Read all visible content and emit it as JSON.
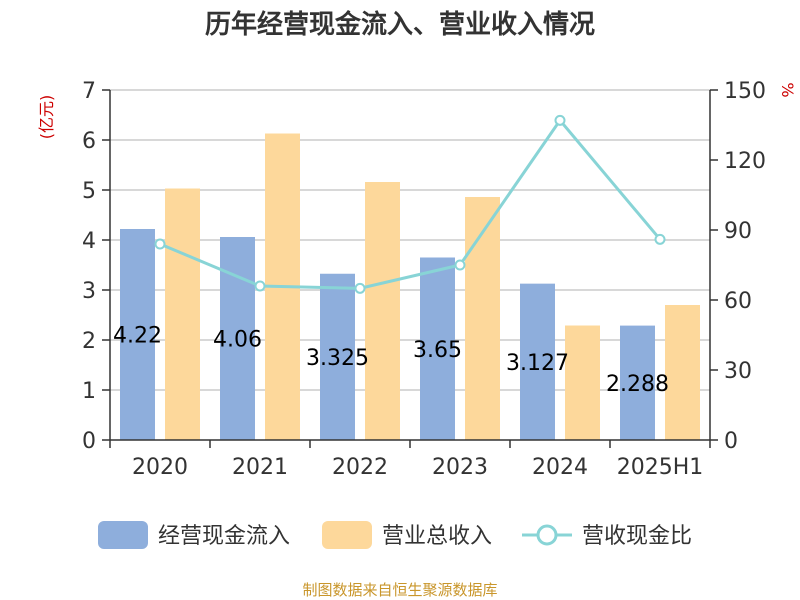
{
  "chart_data": {
    "type": "bar",
    "title": "历年经营现金流入、营业收入情况",
    "categories": [
      "2020",
      "2021",
      "2022",
      "2023",
      "2024",
      "2025H1"
    ],
    "y_left": {
      "unit": "(亿元)",
      "ticks": [
        "0",
        "1",
        "2",
        "3",
        "4",
        "5",
        "6",
        "7"
      ],
      "range": [
        0,
        7
      ]
    },
    "y_right": {
      "unit": "%",
      "ticks": [
        "0",
        "30",
        "60",
        "90",
        "120",
        "150"
      ],
      "range": [
        0,
        150
      ]
    },
    "series": [
      {
        "name": "经营现金流入",
        "type": "bar",
        "axis": "left",
        "color": "#8eaedc",
        "values": [
          4.22,
          4.06,
          3.325,
          3.65,
          3.127,
          2.288
        ],
        "labels": [
          "4.22",
          "4.06",
          "3.325",
          "3.65",
          "3.127",
          "2.288"
        ]
      },
      {
        "name": "营业总收入",
        "type": "bar",
        "axis": "left",
        "color": "#fdd89b",
        "values": [
          5.03,
          6.13,
          5.16,
          4.86,
          2.29,
          2.7
        ]
      },
      {
        "name": "营收现金比",
        "type": "line",
        "axis": "right",
        "color": "#88d4d6",
        "values": [
          84,
          66,
          65,
          75,
          137,
          86
        ]
      }
    ],
    "grid": true,
    "legend_position": "bottom"
  },
  "source": "制图数据来自恒生聚源数据库"
}
